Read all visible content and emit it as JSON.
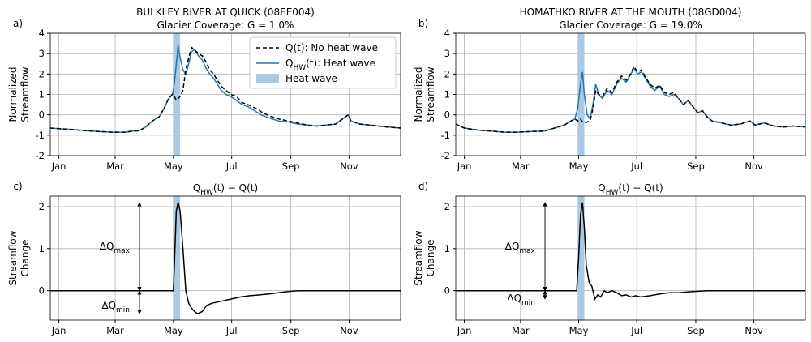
{
  "chart_data": [
    {
      "type": "line",
      "label": "a)",
      "title": [
        "BULKLEY RIVER AT QUICK (08EE004)",
        "Glacier Coverage: G = 1.0%"
      ],
      "ylabel": [
        "Normalized",
        "Streamflow"
      ],
      "grid": true,
      "legend": "upper right",
      "xlim": [
        -9,
        358
      ],
      "ylim": [
        -2,
        4
      ],
      "yticks": [
        -2,
        -1,
        0,
        1,
        2,
        3,
        4
      ],
      "xticks": [
        {
          "value": 0,
          "label": "Jan"
        },
        {
          "value": 59,
          "label": "Mar"
        },
        {
          "value": 120,
          "label": "May"
        },
        {
          "value": 181,
          "label": "Jul"
        },
        {
          "value": 243,
          "label": "Sep"
        },
        {
          "value": 304,
          "label": "Nov"
        }
      ],
      "span": {
        "name": "Heat wave",
        "x": [
          121,
          127
        ],
        "color": "#a9c9e4"
      },
      "x": [
        -9,
        0,
        14,
        28,
        42,
        56,
        70,
        77,
        84,
        91,
        98,
        105,
        110,
        115,
        119,
        121,
        123,
        125,
        127,
        130,
        133,
        136,
        139,
        142,
        146,
        150,
        154,
        158,
        162,
        166,
        170,
        175,
        180,
        186,
        192,
        198,
        205,
        212,
        220,
        230,
        240,
        250,
        260,
        270,
        280,
        290,
        300,
        303,
        306,
        315,
        325,
        335,
        345,
        358
      ],
      "series": [
        {
          "name": "Q(t): No heat wave",
          "color": "#000000",
          "linestyle": "dashed",
          "values": [
            -0.65,
            -0.68,
            -0.72,
            -0.78,
            -0.82,
            -0.85,
            -0.85,
            -0.8,
            -0.78,
            -0.6,
            -0.3,
            -0.1,
            0.3,
            0.8,
            1.0,
            0.9,
            0.7,
            0.8,
            0.9,
            1.2,
            2.2,
            2.8,
            3.3,
            3.2,
            3.0,
            2.9,
            2.6,
            2.2,
            2.0,
            1.7,
            1.4,
            1.2,
            1.0,
            0.9,
            0.6,
            0.5,
            0.35,
            0.15,
            -0.05,
            -0.2,
            -0.3,
            -0.4,
            -0.5,
            -0.55,
            -0.5,
            -0.45,
            -0.1,
            0.0,
            -0.3,
            -0.45,
            -0.5,
            -0.55,
            -0.6,
            -0.65
          ]
        },
        {
          "name": "Q_{HW}(t): Heat wave",
          "color": "#1f77b4",
          "linestyle": "solid",
          "values": [
            -0.65,
            -0.68,
            -0.72,
            -0.78,
            -0.82,
            -0.85,
            -0.85,
            -0.8,
            -0.78,
            -0.6,
            -0.3,
            -0.1,
            0.3,
            0.8,
            1.0,
            1.5,
            2.5,
            3.4,
            2.8,
            2.2,
            2.0,
            2.5,
            3.1,
            3.2,
            2.9,
            2.7,
            2.3,
            2.0,
            1.8,
            1.5,
            1.2,
            1.0,
            0.9,
            0.7,
            0.5,
            0.4,
            0.2,
            0.0,
            -0.15,
            -0.3,
            -0.35,
            -0.45,
            -0.5,
            -0.55,
            -0.5,
            -0.45,
            -0.1,
            0.0,
            -0.3,
            -0.45,
            -0.5,
            -0.55,
            -0.6,
            -0.65
          ]
        }
      ]
    },
    {
      "type": "line",
      "label": "b)",
      "title": [
        "HOMATHKO RIVER AT THE MOUTH (08GD004)",
        "Glacier Coverage: G = 19.0%"
      ],
      "ylabel": [
        "Normalized",
        "Streamflow"
      ],
      "grid": true,
      "xlim": [
        -9,
        358
      ],
      "ylim": [
        -2,
        4
      ],
      "yticks": [
        -2,
        -1,
        0,
        1,
        2,
        3,
        4
      ],
      "xticks": [
        {
          "value": 0,
          "label": "Jan"
        },
        {
          "value": 59,
          "label": "Mar"
        },
        {
          "value": 120,
          "label": "May"
        },
        {
          "value": 181,
          "label": "Jul"
        },
        {
          "value": 243,
          "label": "Sep"
        },
        {
          "value": 304,
          "label": "Nov"
        }
      ],
      "span": {
        "x": [
          119,
          126
        ],
        "color": "#a9c9e4"
      },
      "x": [
        -9,
        0,
        14,
        28,
        42,
        56,
        70,
        84,
        98,
        105,
        112,
        116,
        119,
        122,
        124,
        126,
        129,
        132,
        135,
        138,
        141,
        145,
        150,
        155,
        160,
        165,
        170,
        175,
        178,
        182,
        186,
        190,
        195,
        200,
        205,
        210,
        215,
        220,
        225,
        230,
        235,
        240,
        245,
        250,
        255,
        260,
        270,
        280,
        290,
        300,
        305,
        315,
        325,
        335,
        345,
        358
      ],
      "series": [
        {
          "color": "#000000",
          "linestyle": "dashed",
          "values": [
            -0.45,
            -0.65,
            -0.75,
            -0.8,
            -0.85,
            -0.85,
            -0.82,
            -0.8,
            -0.6,
            -0.5,
            -0.3,
            -0.2,
            -0.3,
            -0.2,
            -0.35,
            -0.4,
            -0.35,
            -0.3,
            0.3,
            1.2,
            1.0,
            0.9,
            1.3,
            1.1,
            1.6,
            1.9,
            1.7,
            2.05,
            2.35,
            2.1,
            2.2,
            1.85,
            1.5,
            1.3,
            1.45,
            1.1,
            1.0,
            1.1,
            0.8,
            0.5,
            0.7,
            0.4,
            0.1,
            0.2,
            -0.1,
            -0.3,
            -0.4,
            -0.5,
            -0.45,
            -0.3,
            -0.5,
            -0.4,
            -0.55,
            -0.6,
            -0.55,
            -0.6
          ]
        },
        {
          "color": "#1f77b4",
          "linestyle": "solid",
          "values": [
            -0.45,
            -0.65,
            -0.75,
            -0.8,
            -0.85,
            -0.85,
            -0.82,
            -0.8,
            -0.6,
            -0.5,
            -0.3,
            -0.2,
            0.3,
            1.5,
            2.1,
            1.0,
            0.0,
            -0.2,
            0.5,
            1.5,
            1.0,
            0.8,
            1.2,
            1.0,
            1.5,
            1.8,
            1.6,
            2.0,
            2.3,
            2.0,
            2.1,
            1.8,
            1.4,
            1.2,
            1.4,
            1.0,
            0.9,
            1.0,
            0.8,
            0.5,
            0.7,
            0.4,
            0.1,
            0.2,
            -0.1,
            -0.3,
            -0.4,
            -0.5,
            -0.45,
            -0.3,
            -0.5,
            -0.4,
            -0.55,
            -0.6,
            -0.55,
            -0.6
          ]
        }
      ]
    },
    {
      "type": "line",
      "label": "c)",
      "title": [
        "Q_{HW}(t) − Q(t)"
      ],
      "ylabel": [
        "Streamflow",
        "Change"
      ],
      "grid": true,
      "xlim": [
        -9,
        358
      ],
      "ylim": [
        -0.7,
        2.25
      ],
      "yticks": [
        0,
        1,
        2
      ],
      "xticks": [
        {
          "value": 0,
          "label": "Jan"
        },
        {
          "value": 59,
          "label": "Mar"
        },
        {
          "value": 120,
          "label": "May"
        },
        {
          "value": 181,
          "label": "Jul"
        },
        {
          "value": 243,
          "label": "Sep"
        },
        {
          "value": 304,
          "label": "Nov"
        }
      ],
      "span": {
        "x": [
          121,
          127
        ],
        "color": "#a9c9e4"
      },
      "annotations": [
        "ΔQ_{max}",
        "ΔQ_{min}"
      ],
      "x": [
        -9,
        120,
        121,
        123,
        125,
        127,
        130,
        133,
        136,
        140,
        145,
        150,
        155,
        160,
        170,
        180,
        190,
        200,
        210,
        220,
        230,
        240,
        250,
        358
      ],
      "color": "#000000",
      "values": [
        0,
        0,
        0.6,
        1.9,
        2.1,
        1.9,
        1.0,
        0.0,
        -0.3,
        -0.45,
        -0.55,
        -0.5,
        -0.35,
        -0.3,
        -0.25,
        -0.2,
        -0.15,
        -0.12,
        -0.1,
        -0.08,
        -0.05,
        -0.02,
        0,
        0
      ]
    },
    {
      "type": "line",
      "label": "d)",
      "title": [
        "Q_{HW}(t) − Q(t)"
      ],
      "ylabel": [
        "Streamflow",
        "Change"
      ],
      "grid": true,
      "xlim": [
        -9,
        358
      ],
      "ylim": [
        -0.7,
        2.25
      ],
      "yticks": [
        0,
        1,
        2
      ],
      "xticks": [
        {
          "value": 0,
          "label": "Jan"
        },
        {
          "value": 59,
          "label": "Mar"
        },
        {
          "value": 120,
          "label": "May"
        },
        {
          "value": 181,
          "label": "Jul"
        },
        {
          "value": 243,
          "label": "Sep"
        },
        {
          "value": 304,
          "label": "Nov"
        }
      ],
      "span": {
        "x": [
          119,
          126
        ],
        "color": "#a9c9e4"
      },
      "annotations": [
        "ΔQ_{max}",
        "ΔQ_{min}"
      ],
      "x": [
        -9,
        118,
        120,
        122,
        124,
        126,
        128,
        131,
        134,
        137,
        140,
        143,
        147,
        150,
        155,
        160,
        165,
        170,
        175,
        180,
        185,
        195,
        205,
        215,
        225,
        240,
        255,
        358
      ],
      "color": "#000000",
      "values": [
        0,
        0,
        0.8,
        1.8,
        2.1,
        1.5,
        0.6,
        0.2,
        0.1,
        -0.2,
        -0.1,
        -0.15,
        0.0,
        -0.05,
        0.0,
        -0.05,
        -0.12,
        -0.1,
        -0.15,
        -0.12,
        -0.15,
        -0.12,
        -0.08,
        -0.05,
        -0.05,
        -0.02,
        0,
        0
      ]
    }
  ]
}
